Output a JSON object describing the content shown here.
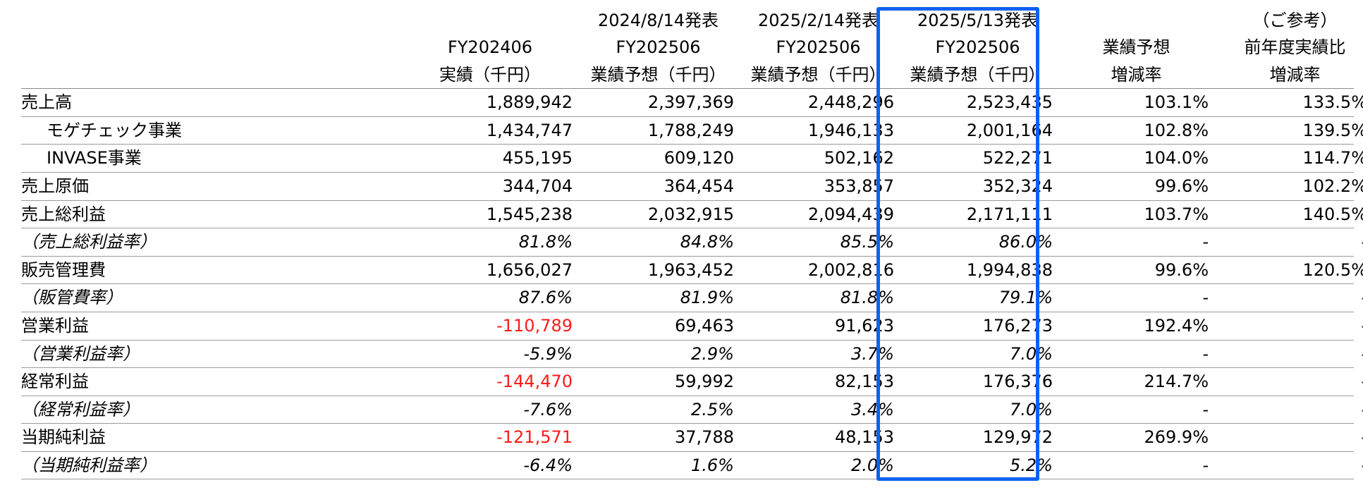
{
  "colors": {
    "highlight": "#1060f0",
    "negative": "#ff1a1a"
  },
  "header": {
    "row1": [
      "",
      "2024/8/14発表",
      "2025/2/14発表",
      "2025/5/13発表",
      "",
      "（ご参考）"
    ],
    "row2": [
      "FY202406",
      "FY202506",
      "FY202506",
      "FY202506",
      "業績予想",
      "前年度実績比"
    ],
    "row3": [
      "実績（千円）",
      "業績予想（千円）",
      "業績予想（千円）",
      "業績予想（千円）",
      "増減率",
      "増減率"
    ]
  },
  "rows": [
    {
      "label": "売上高",
      "indent": false,
      "italic": false,
      "values": [
        "1,889,942",
        "2,397,369",
        "2,448,296",
        "2,523,435",
        "103.1%",
        "133.5%"
      ],
      "negative": [
        false,
        false,
        false,
        false,
        false,
        false
      ]
    },
    {
      "label": "モゲチェック事業",
      "indent": true,
      "italic": false,
      "values": [
        "1,434,747",
        "1,788,249",
        "1,946,133",
        "2,001,164",
        "102.8%",
        "139.5%"
      ],
      "negative": [
        false,
        false,
        false,
        false,
        false,
        false
      ]
    },
    {
      "label": "INVASE事業",
      "indent": true,
      "italic": false,
      "values": [
        "455,195",
        "609,120",
        "502,162",
        "522,271",
        "104.0%",
        "114.7%"
      ],
      "negative": [
        false,
        false,
        false,
        false,
        false,
        false
      ]
    },
    {
      "label": "売上原価",
      "indent": false,
      "italic": false,
      "values": [
        "344,704",
        "364,454",
        "353,857",
        "352,324",
        "99.6%",
        "102.2%"
      ],
      "negative": [
        false,
        false,
        false,
        false,
        false,
        false
      ]
    },
    {
      "label": "売上総利益",
      "indent": false,
      "italic": false,
      "values": [
        "1,545,238",
        "2,032,915",
        "2,094,439",
        "2,171,111",
        "103.7%",
        "140.5%"
      ],
      "negative": [
        false,
        false,
        false,
        false,
        false,
        false
      ]
    },
    {
      "label": "（売上総利益率）",
      "indent": false,
      "italic": true,
      "values": [
        "81.8%",
        "84.8%",
        "85.5%",
        "86.0%",
        "-",
        "-"
      ],
      "negative": [
        false,
        false,
        false,
        false,
        false,
        false
      ]
    },
    {
      "label": "販売管理費",
      "indent": false,
      "italic": false,
      "values": [
        "1,656,027",
        "1,963,452",
        "2,002,816",
        "1,994,838",
        "99.6%",
        "120.5%"
      ],
      "negative": [
        false,
        false,
        false,
        false,
        false,
        false
      ]
    },
    {
      "label": "（販管費率）",
      "indent": false,
      "italic": true,
      "values": [
        "87.6%",
        "81.9%",
        "81.8%",
        "79.1%",
        "-",
        "-"
      ],
      "negative": [
        false,
        false,
        false,
        false,
        false,
        false
      ]
    },
    {
      "label": "営業利益",
      "indent": false,
      "italic": false,
      "values": [
        "-110,789",
        "69,463",
        "91,623",
        "176,273",
        "192.4%",
        "-"
      ],
      "negative": [
        true,
        false,
        false,
        false,
        false,
        false
      ]
    },
    {
      "label": "（営業利益率）",
      "indent": false,
      "italic": true,
      "values": [
        "-5.9%",
        "2.9%",
        "3.7%",
        "7.0%",
        "-",
        "-"
      ],
      "negative": [
        false,
        false,
        false,
        false,
        false,
        false
      ]
    },
    {
      "label": "経常利益",
      "indent": false,
      "italic": false,
      "values": [
        "-144,470",
        "59,992",
        "82,153",
        "176,376",
        "214.7%",
        "-"
      ],
      "negative": [
        true,
        false,
        false,
        false,
        false,
        false
      ]
    },
    {
      "label": "（経常利益率）",
      "indent": false,
      "italic": true,
      "values": [
        "-7.6%",
        "2.5%",
        "3.4%",
        "7.0%",
        "-",
        "-"
      ],
      "negative": [
        false,
        false,
        false,
        false,
        false,
        false
      ]
    },
    {
      "label": "当期純利益",
      "indent": false,
      "italic": false,
      "values": [
        "-121,571",
        "37,788",
        "48,153",
        "129,972",
        "269.9%",
        "-"
      ],
      "negative": [
        true,
        false,
        false,
        false,
        false,
        false
      ]
    },
    {
      "label": "（当期純利益率）",
      "indent": false,
      "italic": true,
      "values": [
        "-6.4%",
        "1.6%",
        "2.0%",
        "5.2%",
        "-",
        "-"
      ],
      "negative": [
        false,
        false,
        false,
        false,
        false,
        false
      ]
    }
  ]
}
